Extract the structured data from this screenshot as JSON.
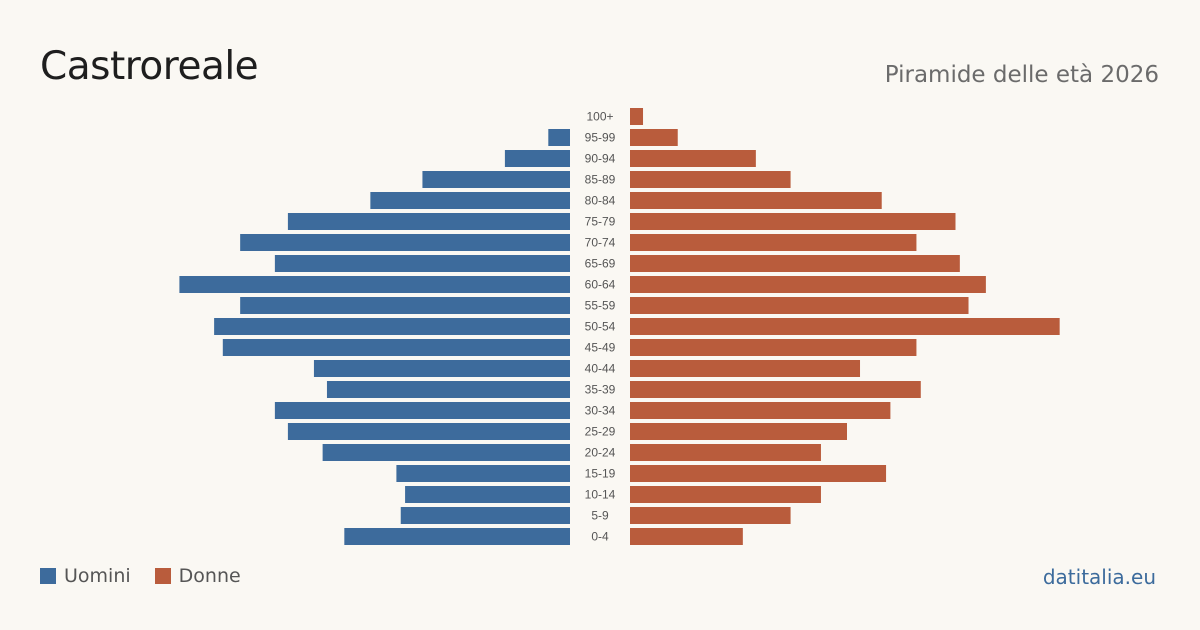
{
  "header": {
    "title": "Castroreale",
    "subtitle": "Piramide delle età 2026"
  },
  "legend": {
    "men_label": "Uomini",
    "women_label": "Donne"
  },
  "source": "datitalia.eu",
  "colors": {
    "men": "#3d6b9c",
    "women": "#b95c3c",
    "label": "#555555",
    "background": "#faf8f3"
  },
  "chart_data": {
    "type": "bar",
    "orientation": "horizontal-pyramid",
    "categories": [
      "100+",
      "95-99",
      "90-94",
      "85-89",
      "80-84",
      "75-79",
      "70-74",
      "65-69",
      "60-64",
      "55-59",
      "50-54",
      "45-49",
      "40-44",
      "35-39",
      "30-34",
      "25-29",
      "20-24",
      "15-19",
      "10-14",
      "5-9",
      "0-4"
    ],
    "series": [
      {
        "name": "Uomini",
        "values": [
          0,
          5,
          15,
          34,
          46,
          65,
          76,
          68,
          90,
          76,
          82,
          80,
          59,
          56,
          68,
          65,
          57,
          40,
          38,
          39,
          52
        ]
      },
      {
        "name": "Donne",
        "values": [
          3,
          11,
          29,
          37,
          58,
          75,
          66,
          76,
          82,
          78,
          99,
          66,
          53,
          67,
          60,
          50,
          44,
          59,
          44,
          37,
          26
        ]
      }
    ],
    "legend_position": "bottom-left",
    "grid": false
  }
}
